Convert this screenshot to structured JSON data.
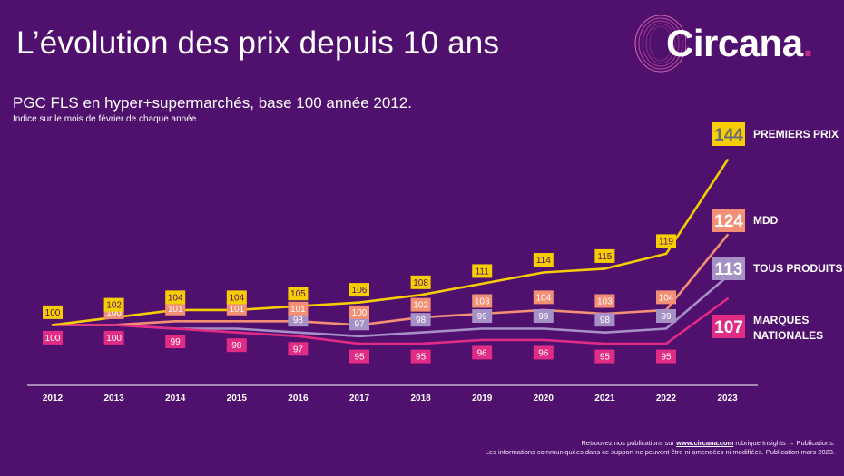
{
  "header": {
    "title": "L’évolution des prix depuis 10 ans",
    "subtitle": "PGC FLS en hyper+supermarchés, base 100 année 2012.",
    "note": "Indice sur le mois de février de chaque année."
  },
  "logo": {
    "text": "Circana",
    "dot_color": "#c02a8c"
  },
  "footer": {
    "line1_prefix": "Retrouvez nos publications sur",
    "line1_link": "www.circana.com",
    "line1_suffix": "rubrique Insights → Publications.",
    "line2": "Les informations communiquées dans ce support ne peuvent être ni amendées ni modifiées. Publication mars 2023."
  },
  "chart_data": {
    "type": "line",
    "x": [
      "2012",
      "2013",
      "2014",
      "2015",
      "2016",
      "2017",
      "2018",
      "2019",
      "2020",
      "2021",
      "2022",
      "2023"
    ],
    "ylim": [
      88,
      148
    ],
    "grid": false,
    "legend": "right end labels",
    "series": [
      {
        "name": "PREMIERS PRIX",
        "color": "#f5cd00",
        "values": [
          100,
          102,
          104,
          104,
          105,
          106,
          108,
          111,
          114,
          115,
          119,
          144
        ],
        "labels": [
          "100",
          "102",
          "104",
          "104",
          "105",
          "106",
          "108",
          "111",
          "114",
          "115",
          "119",
          "144"
        ]
      },
      {
        "name": "MDD",
        "color": "#f28f74",
        "values": [
          100,
          100,
          101,
          101,
          101,
          100,
          102,
          103,
          104,
          103,
          104,
          124
        ],
        "labels": [
          "",
          "100",
          "101",
          "101",
          "101",
          "100",
          "102",
          "103",
          "104",
          "103",
          "104",
          "124"
        ]
      },
      {
        "name": "TOUS PRODUITS",
        "color": "#a691c7",
        "values": [
          100,
          100,
          99,
          99,
          98,
          97,
          98,
          99,
          99,
          98,
          99,
          113
        ],
        "labels": [
          "",
          "",
          "",
          "",
          "98",
          "97",
          "98",
          "99",
          "99",
          "98",
          "99",
          "113"
        ]
      },
      {
        "name": "MARQUES NATIONALES",
        "color": "#e02c84",
        "values": [
          100,
          100,
          99,
          98,
          97,
          95,
          95,
          96,
          96,
          95,
          95,
          107
        ],
        "labels": [
          "100",
          "100",
          "99",
          "98",
          "97",
          "95",
          "95",
          "96",
          "96",
          "95",
          "95",
          "107"
        ]
      }
    ]
  }
}
